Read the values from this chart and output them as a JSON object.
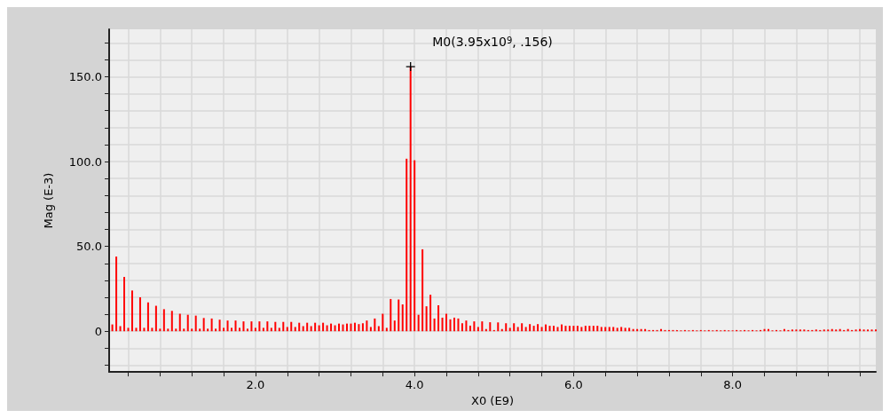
{
  "chart_data": {
    "type": "bar",
    "xlabel": "X0 (E9)",
    "ylabel": "Mag (E-3)",
    "color": "#ff0000",
    "x": [
      0.2,
      0.25,
      0.3,
      0.35,
      0.4,
      0.45,
      0.5,
      0.55,
      0.6,
      0.65,
      0.7,
      0.75,
      0.8,
      0.85,
      0.9,
      0.95,
      1.0,
      1.05,
      1.1,
      1.15,
      1.2,
      1.25,
      1.3,
      1.35,
      1.4,
      1.45,
      1.5,
      1.55,
      1.6,
      1.65,
      1.7,
      1.75,
      1.8,
      1.85,
      1.9,
      1.95,
      2.0,
      2.05,
      2.1,
      2.15,
      2.2,
      2.25,
      2.3,
      2.35,
      2.4,
      2.45,
      2.5,
      2.55,
      2.6,
      2.65,
      2.7,
      2.75,
      2.8,
      2.85,
      2.9,
      2.95,
      3.0,
      3.05,
      3.1,
      3.15,
      3.2,
      3.25,
      3.3,
      3.35,
      3.4,
      3.45,
      3.5,
      3.55,
      3.6,
      3.65,
      3.7,
      3.75,
      3.8,
      3.85,
      3.9,
      3.95,
      4.0,
      4.05,
      4.1,
      4.15,
      4.2,
      4.25,
      4.3,
      4.35,
      4.4,
      4.45,
      4.5,
      4.55,
      4.6,
      4.65,
      4.7,
      4.75,
      4.8,
      4.85,
      4.9,
      4.95,
      5.0,
      5.05,
      5.1,
      5.15,
      5.2,
      5.25,
      5.3,
      5.35,
      5.4,
      5.45,
      5.5,
      5.55,
      5.6,
      5.65,
      5.7,
      5.75,
      5.8,
      5.85,
      5.9,
      5.95,
      6.0,
      6.05,
      6.1,
      6.15,
      6.2,
      6.25,
      6.3,
      6.35,
      6.4,
      6.45,
      6.5,
      6.55,
      6.6,
      6.65,
      6.7,
      6.75,
      6.8,
      6.85,
      6.9,
      6.95,
      7.0,
      7.05,
      7.1,
      7.15,
      7.2,
      7.25,
      7.3,
      7.35,
      7.4,
      7.45,
      7.5,
      7.55,
      7.6,
      7.65,
      7.7,
      7.75,
      7.8,
      7.85,
      7.9,
      7.95,
      8.0,
      8.05,
      8.1,
      8.15,
      8.2,
      8.25,
      8.3,
      8.35,
      8.4,
      8.45,
      8.5,
      8.55,
      8.6,
      8.65,
      8.7,
      8.75,
      8.8,
      8.85,
      8.9,
      8.95,
      9.0,
      9.05,
      9.1,
      9.15,
      9.2,
      9.25,
      9.3,
      9.35,
      9.4,
      9.45,
      9.5,
      9.55,
      9.6,
      9.65,
      9.7,
      9.75,
      9.8
    ],
    "values": [
      4,
      44,
      3,
      32,
      2,
      24,
      2,
      20,
      2,
      17,
      2,
      15,
      1.5,
      13,
      1.5,
      12,
      1.5,
      10.3,
      1.5,
      9.7,
      1.5,
      9.2,
      1.5,
      7.8,
      1.5,
      7.5,
      1.5,
      6.8,
      2,
      6.3,
      2,
      6.3,
      2,
      5.8,
      1.5,
      5.8,
      2,
      5.8,
      2,
      5.8,
      2,
      5.5,
      2,
      5.5,
      2.5,
      5.5,
      2.5,
      5,
      3,
      5,
      3,
      5,
      3.5,
      5,
      3.5,
      4.5,
      3.5,
      4.5,
      4,
      4.5,
      4.5,
      5,
      4.2,
      4.7,
      6.3,
      2.5,
      7.5,
      3,
      10.3,
      2,
      19,
      6.3,
      18.7,
      15.8,
      101.7,
      156,
      100.8,
      9.7,
      48.3,
      14.7,
      21.5,
      7.5,
      15.3,
      8,
      10.3,
      7,
      8,
      7.5,
      4.7,
      6.3,
      3.3,
      5.8,
      2.5,
      5.8,
      1.3,
      5.3,
      0.7,
      5.2,
      1.3,
      4.7,
      2,
      4.7,
      2.5,
      4.7,
      2.5,
      4.2,
      3.2,
      4.2,
      2.5,
      4,
      3.2,
      3.2,
      2.5,
      4,
      3.2,
      3.2,
      3.2,
      3.2,
      2.5,
      3.2,
      3.2,
      3.2,
      3.2,
      2.5,
      2.5,
      2.5,
      2.5,
      2,
      2.5,
      2,
      2,
      1.3,
      1.3,
      1.3,
      1.3,
      0.7,
      0.7,
      0.7,
      1.3,
      0.7,
      0.7,
      0.7,
      0.7,
      0.5,
      0.7,
      0.5,
      0.7,
      0.5,
      0.7,
      0.5,
      0.7,
      0.5,
      0.7,
      0.5,
      0.7,
      0.5,
      0.5,
      0.7,
      0.5,
      0.7,
      0.5,
      0.7,
      0.5,
      0.7,
      1.3,
      1.3,
      0.5,
      0.7,
      0.5,
      1.3,
      0.7,
      1,
      1,
      1,
      1,
      0.7,
      0.7,
      1,
      0.7,
      1,
      1,
      1.3,
      1,
      1.3,
      0.7,
      1.3,
      0.7,
      1,
      1.3,
      1,
      1,
      1,
      1
    ],
    "xlim": [
      0.16,
      9.8
    ],
    "xticks": [
      {
        "value": 0.4,
        "label": null
      },
      {
        "value": 0.8,
        "label": null
      },
      {
        "value": 1.2,
        "label": null
      },
      {
        "value": 1.6,
        "label": null
      },
      {
        "value": 2,
        "label": "2.0"
      },
      {
        "value": 2.4,
        "label": null
      },
      {
        "value": 2.8,
        "label": null
      },
      {
        "value": 3.2,
        "label": null
      },
      {
        "value": 3.6,
        "label": null
      },
      {
        "value": 4,
        "label": "4.0"
      },
      {
        "value": 4.4,
        "label": null
      },
      {
        "value": 4.8,
        "label": null
      },
      {
        "value": 5.2,
        "label": null
      },
      {
        "value": 5.6,
        "label": null
      },
      {
        "value": 6,
        "label": "6.0"
      },
      {
        "value": 6.4,
        "label": null
      },
      {
        "value": 6.8,
        "label": null
      },
      {
        "value": 7.2,
        "label": null
      },
      {
        "value": 7.6,
        "label": null
      },
      {
        "value": 8,
        "label": "8.0"
      },
      {
        "value": 8.4,
        "label": null
      },
      {
        "value": 8.8,
        "label": null
      },
      {
        "value": 9.2,
        "label": null
      },
      {
        "value": 9.6,
        "label": null
      }
    ],
    "ylim": [
      -24,
      178
    ],
    "yticks": [
      {
        "value": -20,
        "label": null
      },
      {
        "value": -10,
        "label": null
      },
      0,
      {
        "value": 10,
        "label": null
      },
      {
        "value": 20,
        "label": null
      },
      {
        "value": 30,
        "label": null
      },
      {
        "value": 40,
        "label": null
      },
      {
        "value": 50,
        "label": "50.0"
      },
      {
        "value": 60,
        "label": null
      },
      {
        "value": 70,
        "label": null
      },
      {
        "value": 80,
        "label": null
      },
      {
        "value": 90,
        "label": null
      },
      {
        "value": 100,
        "label": "100.0"
      },
      {
        "value": 110,
        "label": null
      },
      {
        "value": 120,
        "label": null
      },
      {
        "value": 130,
        "label": null
      },
      {
        "value": 140,
        "label": null
      },
      {
        "value": 150,
        "label": "150.0"
      },
      {
        "value": 160,
        "label": null
      },
      {
        "value": 170,
        "label": null
      }
    ],
    "grid": true,
    "annotations": [
      {
        "text": "M0(3.95x10$^{9}$, .156)",
        "x": 3.95,
        "y": 156
      }
    ]
  }
}
